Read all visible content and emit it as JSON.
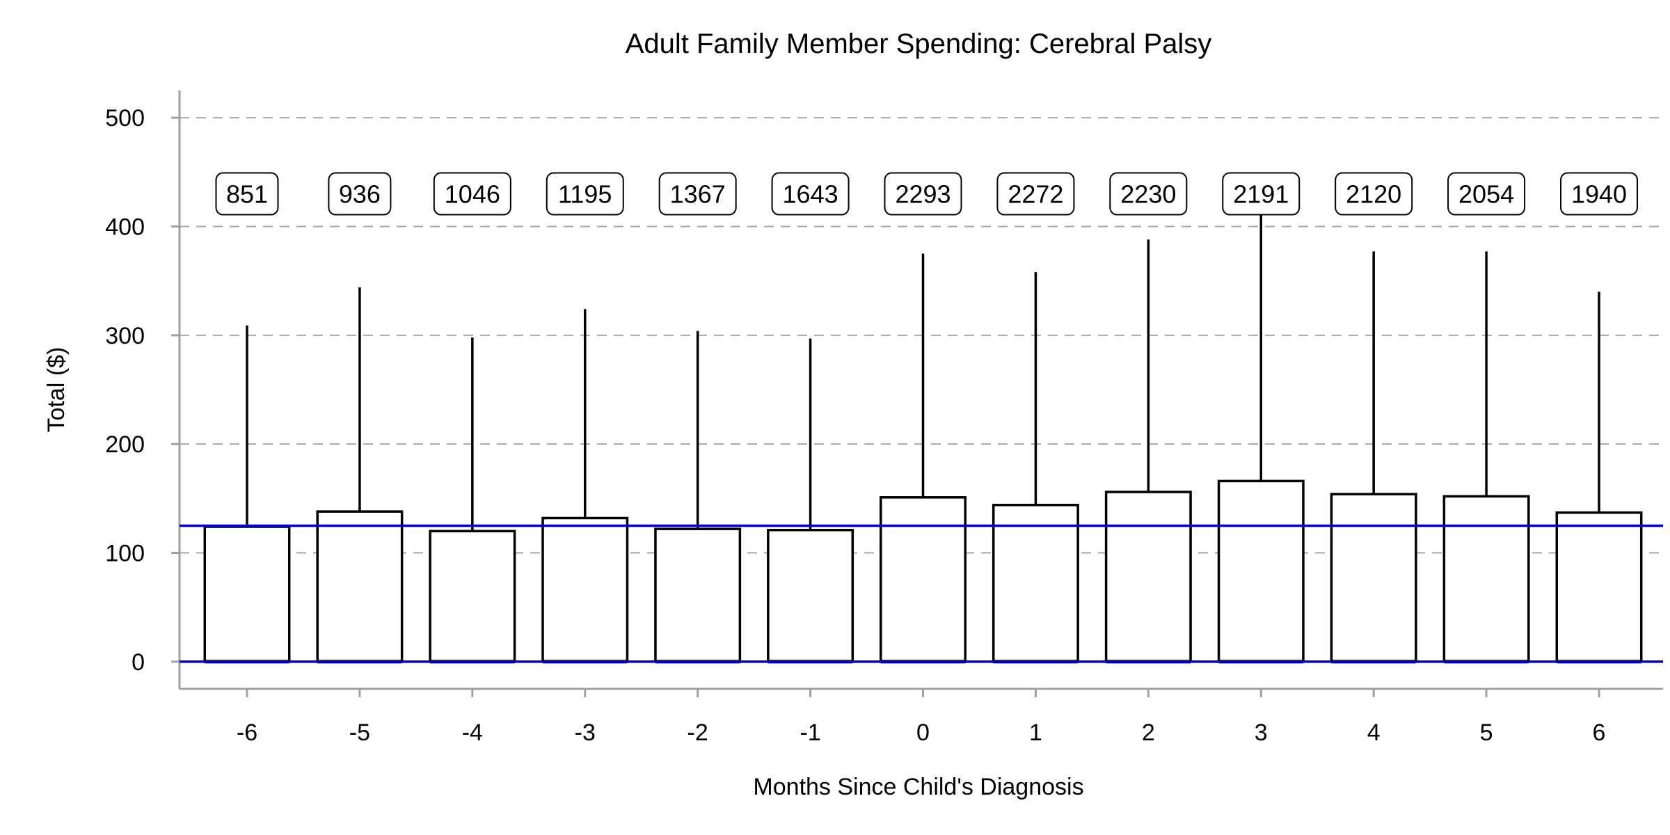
{
  "chart_data": {
    "type": "box",
    "title": "Adult Family Member Spending: Cerebral Palsy",
    "xlabel": "Months Since Child's Diagnosis",
    "ylabel": "Total ($)",
    "ylim": [
      -25,
      525
    ],
    "yticks": [
      0,
      100,
      200,
      300,
      400,
      500
    ],
    "grid": "horizontal-dashed",
    "categories": [
      "-6",
      "-5",
      "-4",
      "-3",
      "-2",
      "-1",
      "0",
      "1",
      "2",
      "3",
      "4",
      "5",
      "6"
    ],
    "boxes": [
      {
        "x": "-6",
        "q1": 0,
        "median": 0,
        "q3": 124,
        "whisker_low": 0,
        "whisker_high": 309,
        "n": "851"
      },
      {
        "x": "-5",
        "q1": 0,
        "median": 0,
        "q3": 138,
        "whisker_low": 0,
        "whisker_high": 344,
        "n": "936"
      },
      {
        "x": "-4",
        "q1": 0,
        "median": 0,
        "q3": 120,
        "whisker_low": 0,
        "whisker_high": 298,
        "n": "1046"
      },
      {
        "x": "-3",
        "q1": 0,
        "median": 0,
        "q3": 132,
        "whisker_low": 0,
        "whisker_high": 324,
        "n": "1195"
      },
      {
        "x": "-2",
        "q1": 0,
        "median": 0,
        "q3": 122,
        "whisker_low": 0,
        "whisker_high": 304,
        "n": "1367"
      },
      {
        "x": "-1",
        "q1": 0,
        "median": 0,
        "q3": 121,
        "whisker_low": 0,
        "whisker_high": 297,
        "n": "1643"
      },
      {
        "x": "0",
        "q1": 0,
        "median": 0,
        "q3": 151,
        "whisker_low": 0,
        "whisker_high": 375,
        "n": "2293"
      },
      {
        "x": "1",
        "q1": 0,
        "median": 0,
        "q3": 144,
        "whisker_low": 0,
        "whisker_high": 358,
        "n": "2272"
      },
      {
        "x": "2",
        "q1": 0,
        "median": 0,
        "q3": 156,
        "whisker_low": 0,
        "whisker_high": 388,
        "n": "2230"
      },
      {
        "x": "3",
        "q1": 0,
        "median": 0,
        "q3": 166,
        "whisker_low": 0,
        "whisker_high": 412,
        "n": "2191"
      },
      {
        "x": "4",
        "q1": 0,
        "median": 0,
        "q3": 154,
        "whisker_low": 0,
        "whisker_high": 377,
        "n": "2120"
      },
      {
        "x": "5",
        "q1": 0,
        "median": 0,
        "q3": 152,
        "whisker_low": 0,
        "whisker_high": 377,
        "n": "2054"
      },
      {
        "x": "6",
        "q1": 0,
        "median": 0,
        "q3": 137,
        "whisker_low": 0,
        "whisker_high": 340,
        "n": "1940"
      }
    ],
    "count_label_y": 430,
    "reference_lines": [
      {
        "y": 0,
        "color": "#0000cc"
      },
      {
        "y": 125,
        "color": "#0000cc"
      }
    ],
    "colors": {
      "box_fill": "#ffffff",
      "box_stroke": "#000000",
      "grid": "#a8a8a8",
      "axis": "#a0a0a0",
      "reference": "#0000cc"
    }
  }
}
